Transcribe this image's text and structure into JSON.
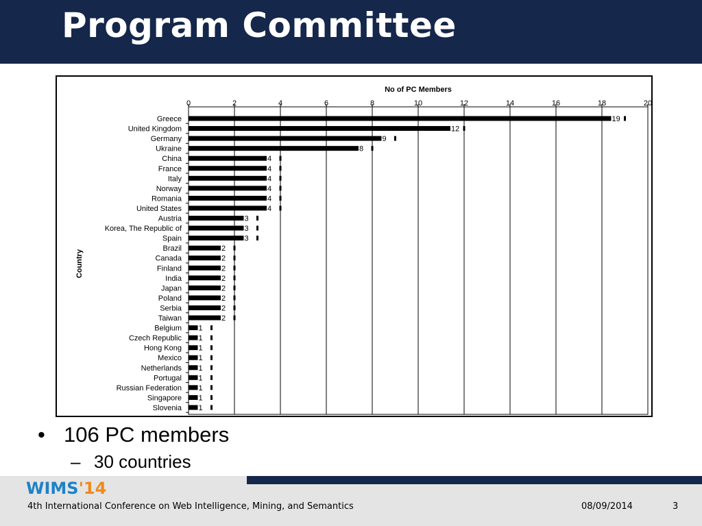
{
  "slide": {
    "title": "Program Committee",
    "bullets": [
      {
        "text": "106 PC members",
        "sub": [
          {
            "text": "30 countries"
          }
        ]
      }
    ]
  },
  "footer": {
    "logo_part1": "WIMS",
    "logo_part2": "'14",
    "conference": "4th International Conference on Web Intelligence, Mining, and Semantics",
    "date": "08/09/2014",
    "page": "3"
  },
  "chart_data": {
    "type": "bar",
    "orientation": "horizontal",
    "title": "No of PC Members",
    "xlabel": "",
    "ylabel": "Country",
    "xlim": [
      0,
      20
    ],
    "xticks": [
      0,
      2,
      4,
      6,
      8,
      10,
      12,
      14,
      16,
      18,
      20
    ],
    "grid": true,
    "categories": [
      "Greece",
      "United Kingdom",
      "Germany",
      "Ukraine",
      "China",
      "France",
      "Italy",
      "Norway",
      "Romania",
      "United States",
      "Austria",
      "Korea, The Republic of",
      "Spain",
      "Brazil",
      "Canada",
      "Finland",
      "India",
      "Japan",
      "Poland",
      "Serbia",
      "Taiwan",
      "Belgium",
      "Czech Republic",
      "Hong Kong",
      "Mexico",
      "Netherlands",
      "Portugal",
      "Russian Federation",
      "Singapore",
      "Slovenia"
    ],
    "values": [
      19,
      12,
      9,
      8,
      4,
      4,
      4,
      4,
      4,
      4,
      3,
      3,
      3,
      2,
      2,
      2,
      2,
      2,
      2,
      2,
      2,
      1,
      1,
      1,
      1,
      1,
      1,
      1,
      1,
      1
    ],
    "colors": {
      "bar": "#000000"
    }
  }
}
